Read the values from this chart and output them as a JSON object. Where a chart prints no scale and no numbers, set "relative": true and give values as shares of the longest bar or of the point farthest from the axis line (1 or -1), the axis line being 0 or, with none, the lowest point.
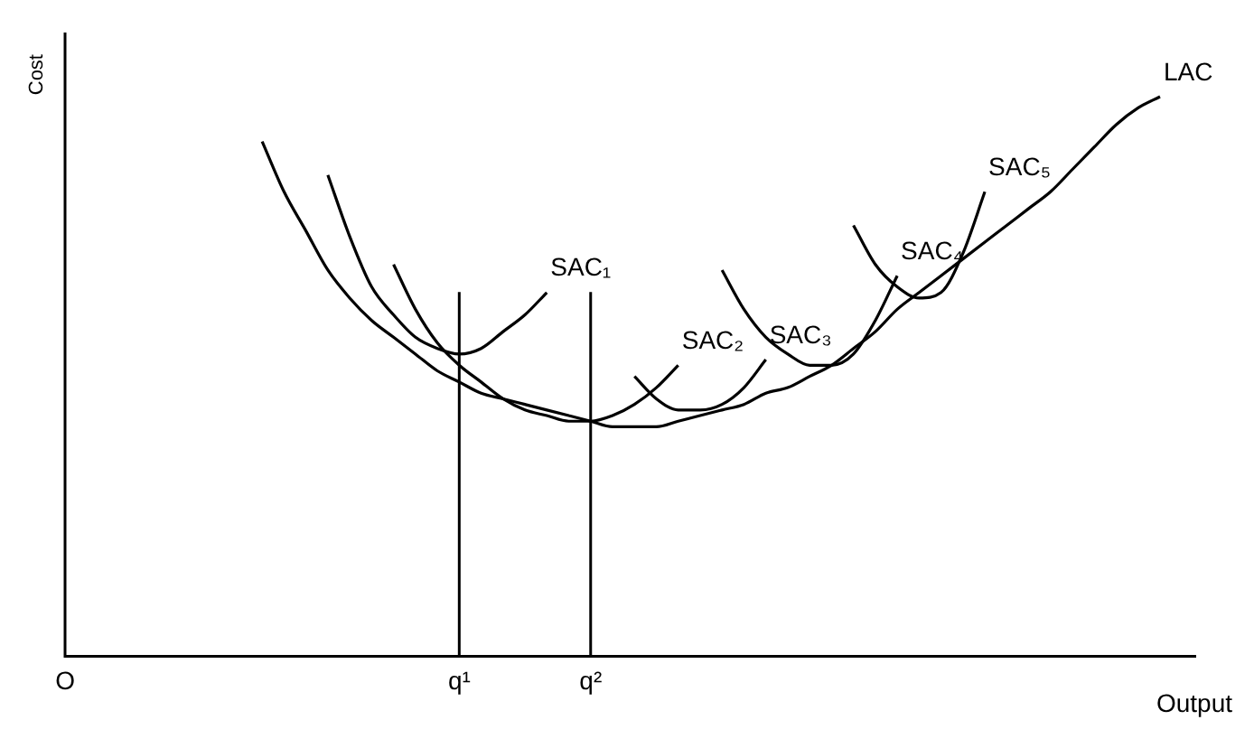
{
  "chart_data": {
    "type": "line",
    "relative": true,
    "xlabel": "Output",
    "ylabel": "Cost",
    "grid": false,
    "legend": false,
    "marker": "none",
    "line_style": "solid",
    "categories": [
      "O",
      null,
      null,
      null,
      null,
      null,
      null,
      null,
      null,
      null,
      null,
      null,
      null,
      null,
      null,
      null,
      null,
      null,
      "q¹",
      null,
      null,
      null,
      null,
      null,
      "q²",
      null,
      null,
      null,
      null,
      null,
      null,
      null,
      null,
      null,
      null,
      null,
      null,
      null,
      null,
      null,
      null,
      null,
      null,
      null,
      null,
      null,
      null,
      null,
      null,
      null,
      null
    ],
    "ref_lines": [
      {
        "axis": "x",
        "value": "q¹",
        "color": "#000000"
      },
      {
        "axis": "x",
        "value": "q²",
        "color": "#000000"
      }
    ],
    "series": [
      {
        "name": "LAC",
        "color": "#000000",
        "values": [
          null,
          null,
          null,
          null,
          null,
          null,
          null,
          null,
          null,
          0.92,
          0.83,
          0.76,
          0.69,
          0.64,
          0.6,
          0.57,
          0.54,
          0.51,
          0.49,
          0.47,
          0.46,
          0.45,
          0.44,
          0.43,
          0.42,
          0.41,
          0.41,
          0.41,
          0.42,
          0.43,
          0.44,
          0.45,
          0.47,
          0.48,
          0.5,
          0.52,
          0.55,
          0.58,
          0.62,
          0.65,
          0.68,
          0.71,
          0.74,
          0.77,
          0.8,
          0.83,
          0.87,
          0.91,
          0.95,
          0.98,
          1.0
        ]
      },
      {
        "name": "SAC₁",
        "color": "#000000",
        "values": [
          null,
          null,
          null,
          null,
          null,
          null,
          null,
          null,
          null,
          null,
          null,
          null,
          0.86,
          0.75,
          0.66,
          0.61,
          0.57,
          0.55,
          0.54,
          0.55,
          0.58,
          0.61,
          0.65,
          null,
          null,
          null,
          null,
          null,
          null,
          null,
          null,
          null,
          null,
          null,
          null,
          null,
          null,
          null,
          null,
          null,
          null,
          null,
          null,
          null,
          null,
          null,
          null,
          null,
          null,
          null,
          null
        ]
      },
      {
        "name": "SAC₂",
        "color": "#000000",
        "values": [
          null,
          null,
          null,
          null,
          null,
          null,
          null,
          null,
          null,
          null,
          null,
          null,
          null,
          null,
          null,
          0.7,
          0.62,
          0.56,
          0.52,
          0.49,
          0.46,
          0.44,
          0.43,
          0.42,
          0.42,
          0.43,
          0.45,
          0.48,
          0.52,
          null,
          null,
          null,
          null,
          null,
          null,
          null,
          null,
          null,
          null,
          null,
          null,
          null,
          null,
          null,
          null,
          null,
          null,
          null,
          null,
          null,
          null
        ]
      },
      {
        "name": "SAC₃",
        "color": "#000000",
        "values": [
          null,
          null,
          null,
          null,
          null,
          null,
          null,
          null,
          null,
          null,
          null,
          null,
          null,
          null,
          null,
          null,
          null,
          null,
          null,
          null,
          null,
          null,
          null,
          null,
          null,
          null,
          0.5,
          0.46,
          0.44,
          0.44,
          0.45,
          0.48,
          0.53,
          null,
          null,
          null,
          null,
          null,
          null,
          null,
          null,
          null,
          null,
          null,
          null,
          null,
          null,
          null,
          null,
          null,
          null
        ]
      },
      {
        "name": "SAC₄",
        "color": "#000000",
        "values": [
          null,
          null,
          null,
          null,
          null,
          null,
          null,
          null,
          null,
          null,
          null,
          null,
          null,
          null,
          null,
          null,
          null,
          null,
          null,
          null,
          null,
          null,
          null,
          null,
          null,
          null,
          null,
          null,
          null,
          null,
          0.69,
          0.62,
          0.57,
          0.54,
          0.52,
          0.52,
          0.54,
          0.6,
          0.68,
          null,
          null,
          null,
          null,
          null,
          null,
          null,
          null,
          null,
          null,
          null,
          null
        ]
      },
      {
        "name": "SAC₅",
        "color": "#000000",
        "values": [
          null,
          null,
          null,
          null,
          null,
          null,
          null,
          null,
          null,
          null,
          null,
          null,
          null,
          null,
          null,
          null,
          null,
          null,
          null,
          null,
          null,
          null,
          null,
          null,
          null,
          null,
          null,
          null,
          null,
          null,
          null,
          null,
          null,
          null,
          null,
          null,
          0.77,
          0.7,
          0.66,
          0.64,
          0.65,
          0.72,
          0.83,
          null,
          null,
          null,
          null,
          null,
          null,
          null,
          null
        ]
      }
    ]
  }
}
